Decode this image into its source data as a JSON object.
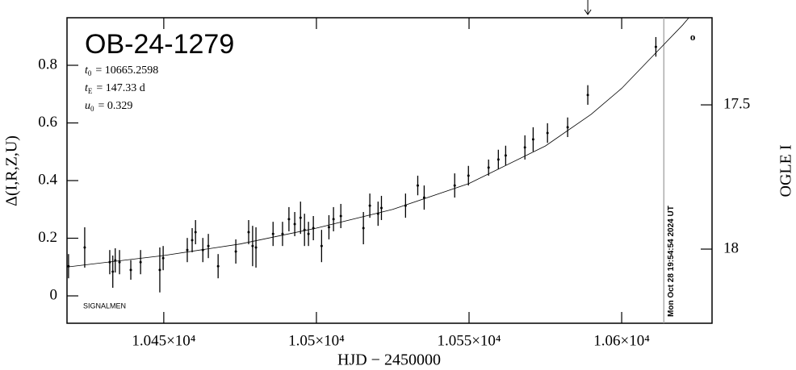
{
  "chart_data": {
    "type": "scatter",
    "title": "OB-24-1279",
    "params": [
      {
        "symbol": "t",
        "sub": "0",
        "text": "= 10665.2598"
      },
      {
        "symbol": "t",
        "sub": "E",
        "text": "= 147.33 d"
      },
      {
        "symbol": "u",
        "sub": "0",
        "text": "= 0.329"
      }
    ],
    "credit": "SIGNALMEN",
    "x_label": "HJD − 2450000",
    "y_label": "Δ(I,R,Z,U)",
    "y2_label": "OGLE I",
    "xlim": [
      10418.3,
      10629.6
    ],
    "ylim": [
      -0.095,
      0.965
    ],
    "y2lim": [
      18.257,
      17.198
    ],
    "xticks": [
      {
        "value": 10450,
        "label": "1.045×10⁴"
      },
      {
        "value": 10500,
        "label": "1.05×10⁴"
      },
      {
        "value": 10550,
        "label": "1.055×10⁴"
      },
      {
        "value": 10600,
        "label": "1.06×10⁴"
      }
    ],
    "yticks": [
      0,
      0.2,
      0.4,
      0.6,
      0.8
    ],
    "y2ticks": [
      17.5,
      18
    ],
    "color": "#000000",
    "x": [
      10418.8,
      10424.1,
      10432.3,
      10433.3,
      10434.1,
      10435.5,
      10439.2,
      10442.4,
      10448.7,
      10449.8,
      10457.7,
      10459.3,
      10460.4,
      10462.8,
      10464.6,
      10467.8,
      10473.6,
      10477.8,
      10479.1,
      10480.2,
      10485.8,
      10488.9,
      10491.0,
      10492.9,
      10494.8,
      10496.1,
      10497.4,
      10499.0,
      10501.7,
      10504.1,
      10505.6,
      10508.0,
      10515.4,
      10517.5,
      10520.2,
      10521.3,
      10529.2,
      10533.2,
      10535.3,
      10545.3,
      10549.8,
      10556.4,
      10559.6,
      10562.0,
      10568.3,
      10571.0,
      10575.7,
      10582.3,
      10588.9,
      10611.2
    ],
    "values": [
      0.103,
      0.168,
      0.117,
      0.084,
      0.123,
      0.117,
      0.09,
      0.117,
      0.09,
      0.131,
      0.159,
      0.193,
      0.221,
      0.159,
      0.173,
      0.103,
      0.154,
      0.221,
      0.173,
      0.168,
      0.215,
      0.215,
      0.266,
      0.249,
      0.271,
      0.229,
      0.215,
      0.235,
      0.173,
      0.238,
      0.266,
      0.277,
      0.235,
      0.313,
      0.285,
      0.305,
      0.313,
      0.383,
      0.341,
      0.383,
      0.417,
      0.445,
      0.473,
      0.487,
      0.515,
      0.543,
      0.565,
      0.585,
      0.697,
      0.864
    ],
    "errors": [
      0.042,
      0.07,
      0.042,
      0.056,
      0.042,
      0.042,
      0.034,
      0.042,
      0.078,
      0.042,
      0.042,
      0.042,
      0.042,
      0.042,
      0.042,
      0.042,
      0.042,
      0.042,
      0.07,
      0.07,
      0.042,
      0.042,
      0.042,
      0.042,
      0.056,
      0.056,
      0.042,
      0.042,
      0.056,
      0.042,
      0.042,
      0.042,
      0.056,
      0.042,
      0.042,
      0.042,
      0.042,
      0.034,
      0.042,
      0.042,
      0.034,
      0.028,
      0.034,
      0.034,
      0.042,
      0.042,
      0.034,
      0.034,
      0.034,
      0.034
    ],
    "model": {
      "x": [
        10418.3,
        10450,
        10475,
        10500,
        10525,
        10550,
        10575,
        10590,
        10600,
        10610,
        10620,
        10622
      ],
      "values": [
        0.1,
        0.14,
        0.18,
        0.235,
        0.3,
        0.39,
        0.52,
        0.63,
        0.72,
        0.83,
        0.94,
        0.965
      ]
    },
    "marker": {
      "x": 10613.8,
      "label": "Mon Oct 28 19:54:54 2024 UT",
      "color": "#999999"
    },
    "arrow_x": 10588.9,
    "annotation": {
      "text": "o",
      "x": 10623.3,
      "y": 0.895
    }
  }
}
